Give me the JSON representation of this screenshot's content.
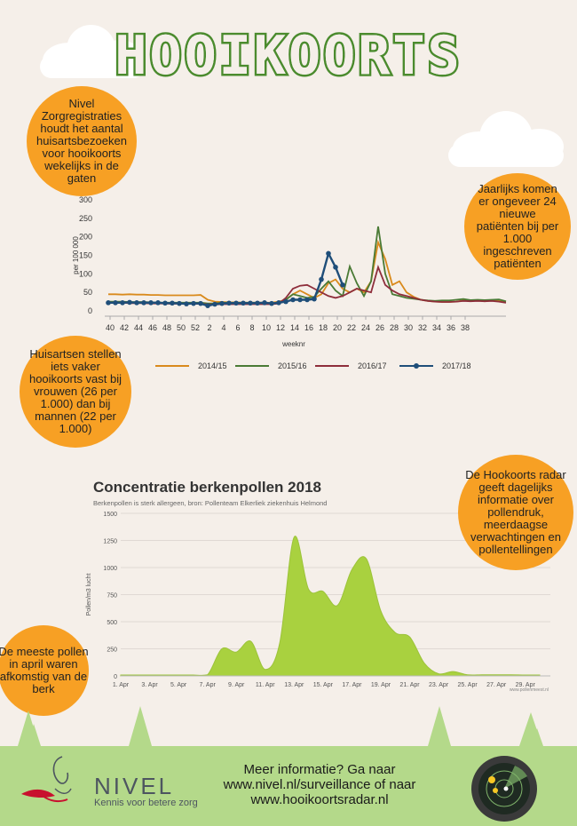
{
  "header": {
    "title": "HOOIKOORTS"
  },
  "bubbles": {
    "intro": [
      "Nivel",
      "Zorgregistraties",
      "houdt het aantal",
      "huisartsbezoeken",
      "voor hooikoorts",
      "wekelijks in de",
      "gaten"
    ],
    "yearly": [
      "Jaarlijks komen",
      "er ongeveer 24",
      "nieuwe",
      "patiënten bij per",
      "1.000",
      "ingeschreven",
      "patiënten"
    ],
    "gender": [
      "Huisartsen stellen",
      "iets vaker",
      "hooikoorts vast bij",
      "vrouwen (26 per",
      "1.000) dan bij",
      "mannen  (22 per",
      "1.000)"
    ],
    "radar": [
      "De Hookoorts radar",
      "geeft dagelijks",
      "informatie over",
      "pollendruk,",
      "meerdaagse",
      "verwachtingen en",
      "pollentellingen"
    ],
    "april": [
      "De meeste pollen",
      "in april waren",
      "afkomstig van de",
      "berk"
    ]
  },
  "colors": {
    "s2014": "#d98a1c",
    "s2015": "#4a7a35",
    "s2016": "#8e2e3b",
    "s2017": "#1f4e79",
    "area": "#a9d13f",
    "footer": "#b4d98a",
    "bubble": "#f7a024"
  },
  "footer": {
    "brand": "NIVEL",
    "tagline": "Kennis voor betere zorg",
    "info": [
      "Meer informatie? Ga naar",
      "www.nivel.nl/surveillance of naar",
      "www.hooikoortsradar.nl"
    ]
  },
  "chart_data": [
    {
      "type": "line",
      "title": "",
      "xlabel": "weeknr",
      "ylabel": "per 100 000",
      "ylim": [
        0,
        300
      ],
      "yticks": [
        0,
        50,
        100,
        150,
        200,
        250,
        300
      ],
      "x_ticklabels": [
        "40",
        "42",
        "44",
        "46",
        "48",
        "50",
        "52",
        "2",
        "4",
        "6",
        "8",
        "10",
        "12",
        "14",
        "16",
        "18",
        "20",
        "22",
        "24",
        "26",
        "28",
        "30",
        "32",
        "34",
        "36",
        "38"
      ],
      "legend_position": "bottom",
      "series": [
        {
          "name": "2014/15",
          "color": "#d98a1c",
          "values": [
            45,
            45,
            44,
            45,
            44,
            44,
            43,
            43,
            42,
            42,
            42,
            42,
            42,
            43,
            30,
            25,
            24,
            23,
            23,
            22,
            22,
            22,
            22,
            22,
            25,
            30,
            45,
            55,
            45,
            35,
            45,
            75,
            85,
            60,
            50,
            60,
            50,
            80,
            185,
            140,
            70,
            80,
            50,
            38,
            30,
            27,
            25,
            24,
            24,
            25,
            28,
            27,
            28,
            26,
            28,
            27,
            25
          ]
        },
        {
          "name": "2015/16",
          "color": "#4a7a35",
          "values": [
            25,
            25,
            25,
            24,
            24,
            24,
            23,
            22,
            22,
            22,
            22,
            22,
            22,
            22,
            20,
            20,
            22,
            22,
            22,
            22,
            22,
            22,
            22,
            20,
            22,
            30,
            45,
            40,
            35,
            38,
            60,
            80,
            55,
            40,
            120,
            75,
            40,
            80,
            228,
            100,
            45,
            40,
            35,
            33,
            30,
            28,
            27,
            28,
            28,
            30,
            32,
            29,
            30,
            29,
            30,
            31,
            26
          ]
        },
        {
          "name": "2016/17",
          "color": "#8e2e3b",
          "values": [
            22,
            22,
            22,
            21,
            21,
            21,
            20,
            20,
            20,
            19,
            20,
            19,
            19,
            19,
            18,
            17,
            18,
            18,
            18,
            18,
            18,
            18,
            18,
            18,
            20,
            35,
            60,
            68,
            70,
            60,
            50,
            40,
            35,
            40,
            50,
            60,
            55,
            50,
            118,
            70,
            55,
            45,
            40,
            35,
            30,
            27,
            25,
            24,
            24,
            25,
            27,
            26,
            27,
            26,
            27,
            25,
            22
          ]
        },
        {
          "name": "2017/18",
          "color": "#1f4e79",
          "values": [
            22,
            22,
            22,
            23,
            22,
            22,
            22,
            22,
            21,
            21,
            20,
            19,
            20,
            20,
            14,
            18,
            20,
            21,
            21,
            21,
            21,
            21,
            22,
            20,
            22,
            25,
            30,
            30,
            30,
            32,
            85,
            155,
            118,
            70,
            null,
            null,
            null,
            null,
            null,
            null,
            null,
            null,
            null,
            null,
            null,
            null,
            null,
            null,
            null,
            null,
            null,
            null,
            null,
            null,
            null,
            null,
            null
          ]
        }
      ]
    },
    {
      "type": "area",
      "title": "Concentratie berkenpollen 2018",
      "subtitle": "Berkenpollen is sterk allergeen, bron: Pollenteam Elkerliek ziekenhuis Helmond",
      "ylabel": "Pollen/m3 lucht",
      "ylim": [
        0,
        1500
      ],
      "yticks": [
        0,
        250,
        500,
        750,
        1000,
        1250,
        1500
      ],
      "x_ticklabels": [
        "1. Apr",
        "3. Apr",
        "5. Apr",
        "7. Apr",
        "9. Apr",
        "11. Apr",
        "13. Apr",
        "15. Apr",
        "17. Apr",
        "19. Apr",
        "21. Apr",
        "23. Apr",
        "25. Apr",
        "27. Apr",
        "29. Apr"
      ],
      "credit": "www.pollenmeest.nl",
      "x": [
        1,
        2,
        3,
        4,
        5,
        6,
        7,
        8,
        9,
        10,
        11,
        12,
        13,
        14,
        15,
        16,
        17,
        18,
        19,
        20,
        21,
        22,
        23,
        24,
        25,
        26,
        27,
        28,
        29,
        30
      ],
      "values": [
        8,
        8,
        8,
        8,
        8,
        8,
        10,
        250,
        220,
        320,
        60,
        300,
        1280,
        800,
        780,
        650,
        980,
        1080,
        600,
        400,
        360,
        120,
        20,
        40,
        10,
        10,
        10,
        10,
        8,
        8
      ]
    }
  ]
}
